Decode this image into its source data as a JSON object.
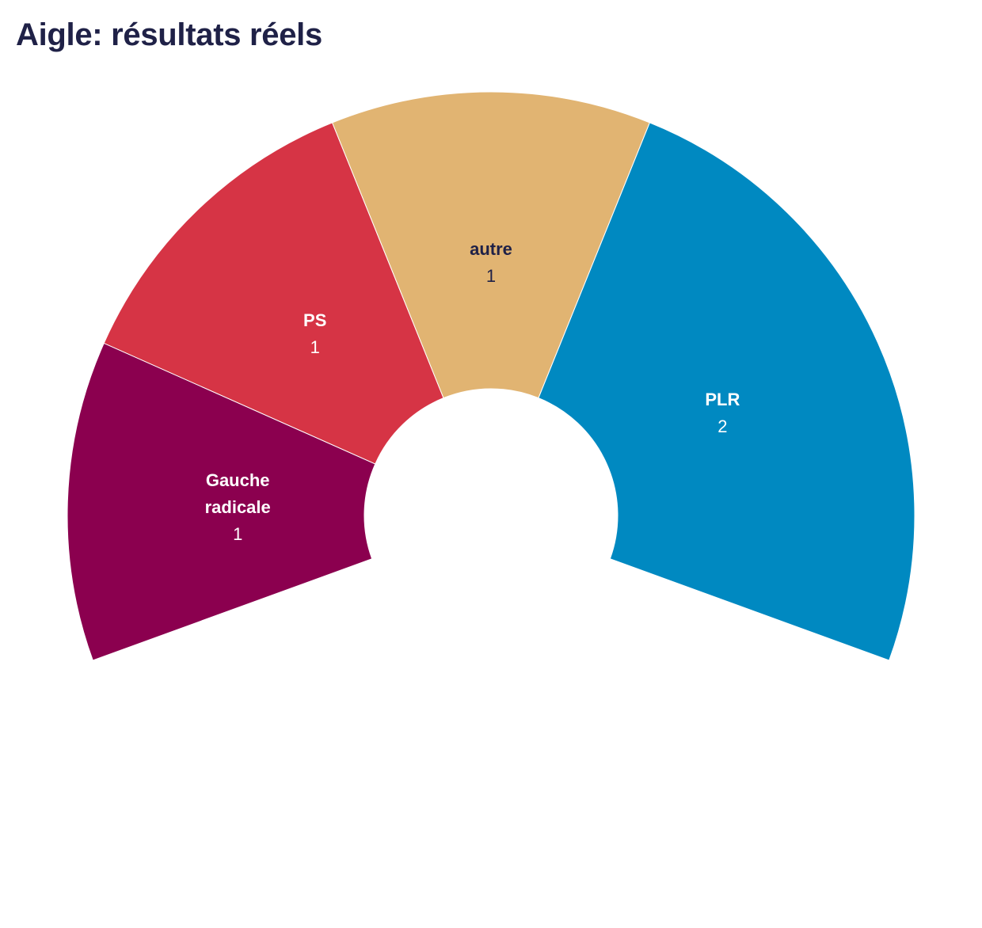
{
  "chart_data": {
    "type": "pie",
    "variant": "semi-donut",
    "title": "Aigle: résultats réels",
    "start_angle_deg": -110,
    "end_angle_deg": 110,
    "slices": [
      {
        "name": "Gauche radicale",
        "lines": [
          "Gauche",
          "radicale"
        ],
        "value": 1,
        "color": "#8b004f",
        "text_color": "#ffffff"
      },
      {
        "name": "PS",
        "lines": [
          "PS"
        ],
        "value": 1,
        "color": "#d63445",
        "text_color": "#ffffff"
      },
      {
        "name": "autre",
        "lines": [
          "autre"
        ],
        "value": 1,
        "color": "#e1b472",
        "text_color": "#1f2147"
      },
      {
        "name": "PLR",
        "lines": [
          "PLR"
        ],
        "value": 2,
        "color": "#0089c1",
        "text_color": "#ffffff"
      }
    ],
    "total": 5
  }
}
